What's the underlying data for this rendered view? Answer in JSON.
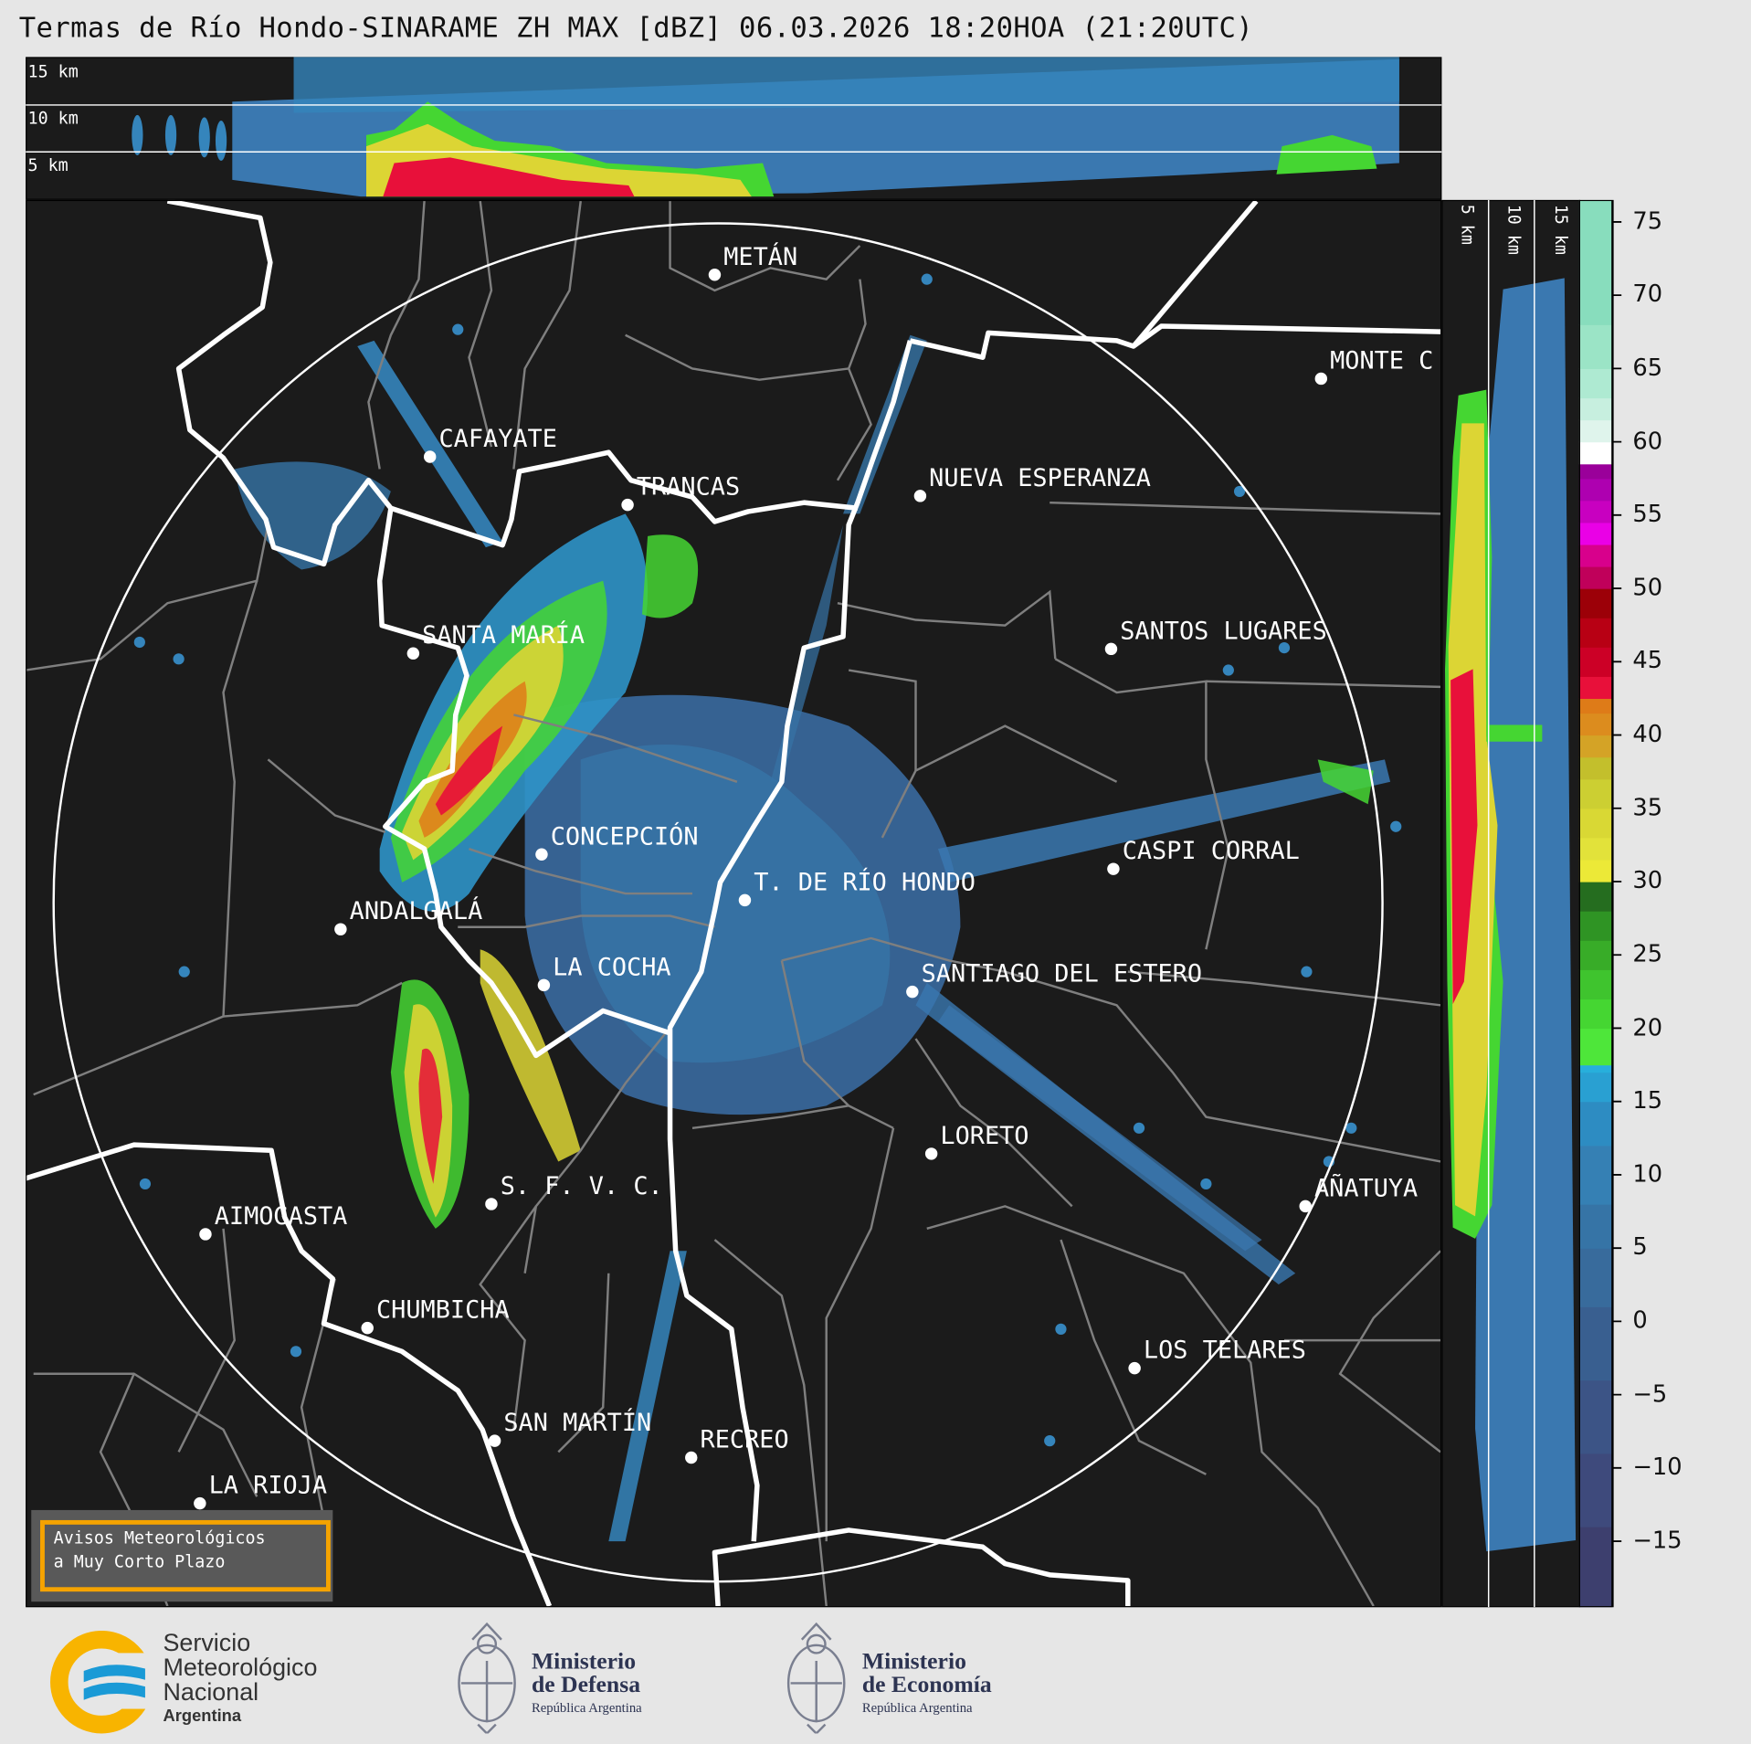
{
  "title": "Termas de Río Hondo-SINARAME ZH MAX [dBZ] 06.03.2026 18:20HOA (21:20UTC)",
  "top_panel": {
    "height_labels": [
      "15 km",
      "10 km",
      "5 km"
    ]
  },
  "side_panel": {
    "height_labels": [
      "5 km",
      "10 km",
      "15 km"
    ]
  },
  "colorbar": {
    "unit": "dBZ",
    "ticks": [
      "75",
      "70",
      "65",
      "60",
      "55",
      "50",
      "45",
      "40",
      "35",
      "30",
      "25",
      "20",
      "15",
      "10",
      "5",
      "0",
      "−5",
      "−10",
      "−15"
    ],
    "range": [
      -19.5,
      76.5
    ],
    "bands": [
      [
        -19.5,
        "#3d3f6e"
      ],
      [
        -14,
        "#3e4a7c"
      ],
      [
        -9,
        "#3c5486"
      ],
      [
        -4,
        "#395f90"
      ],
      [
        1,
        "#386b9c"
      ],
      [
        5,
        "#3674a6"
      ],
      [
        8,
        "#3580b4"
      ],
      [
        12,
        "#2d8cc2"
      ],
      [
        15,
        "#29a0d2"
      ],
      [
        17,
        "#27afdc"
      ],
      [
        17.5,
        "#4ee63a"
      ],
      [
        20,
        "#45d632"
      ],
      [
        22,
        "#3fc42e"
      ],
      [
        24,
        "#38ac28"
      ],
      [
        26,
        "#2f9424"
      ],
      [
        28,
        "#256d1f"
      ],
      [
        30,
        "#ece937"
      ],
      [
        31.5,
        "#e2e23a"
      ],
      [
        33,
        "#d9d834"
      ],
      [
        35,
        "#cccf32"
      ],
      [
        37,
        "#c3bf2c"
      ],
      [
        38.5,
        "#d4a326"
      ],
      [
        40,
        "#dc8c1e"
      ],
      [
        41.5,
        "#de7b18"
      ],
      [
        42.5,
        "#e8103a"
      ],
      [
        44,
        "#cc0026"
      ],
      [
        46,
        "#b80014"
      ],
      [
        48,
        "#9c0008"
      ],
      [
        50,
        "#c0005a"
      ],
      [
        51.5,
        "#d8008c"
      ],
      [
        53,
        "#ea00e6"
      ],
      [
        54.5,
        "#c800c0"
      ],
      [
        56,
        "#ae00b0"
      ],
      [
        57.5,
        "#9a009a"
      ],
      [
        58.5,
        "#ffffff"
      ],
      [
        60,
        "#dff4ec"
      ],
      [
        61.5,
        "#c7efdf"
      ],
      [
        63,
        "#aeead2"
      ],
      [
        65,
        "#9be4c6"
      ],
      [
        68,
        "#88ddbd"
      ]
    ]
  },
  "map": {
    "cities": [
      "METÁN",
      "CAFAYATE",
      "TRANCAS",
      "NUEVA ESPERANZA",
      "MONTE C",
      "SANTA MARÍA",
      "SANTOS LUGARES",
      "CONCEPCIÓN",
      "CASPI CORRAL",
      "T. DE RÍO HONDO",
      "ANDALGALÁ",
      "LA COCHA",
      "SANTIAGO DEL ESTERO",
      "LORETO",
      "S. F. V. C.",
      "AÑATUYA",
      "AIMOGASTA",
      "CHUMBICHA",
      "LOS TELARES",
      "SAN MARTÍN",
      "RECREO",
      "LA RIOJA"
    ],
    "colors": {
      "background": "#1b1b1b",
      "province_border": "#ffffff",
      "department_border": "#7f7f7f",
      "range_ring": "#ffffff"
    }
  },
  "warning_box": {
    "line1": "Avisos Meteorológicos",
    "line2": "a Muy Corto Plazo",
    "border_color": "#f5a300"
  },
  "footer": {
    "smn": {
      "line1": "Servicio",
      "line2": "Meteorológico",
      "line3": "Nacional",
      "line4": "Argentina"
    },
    "defensa": {
      "line1": "Ministerio",
      "line2": "de Defensa",
      "line3": "República Argentina"
    },
    "economia": {
      "line1": "Ministerio",
      "line2": "de Economía",
      "line3": "República Argentina"
    }
  }
}
